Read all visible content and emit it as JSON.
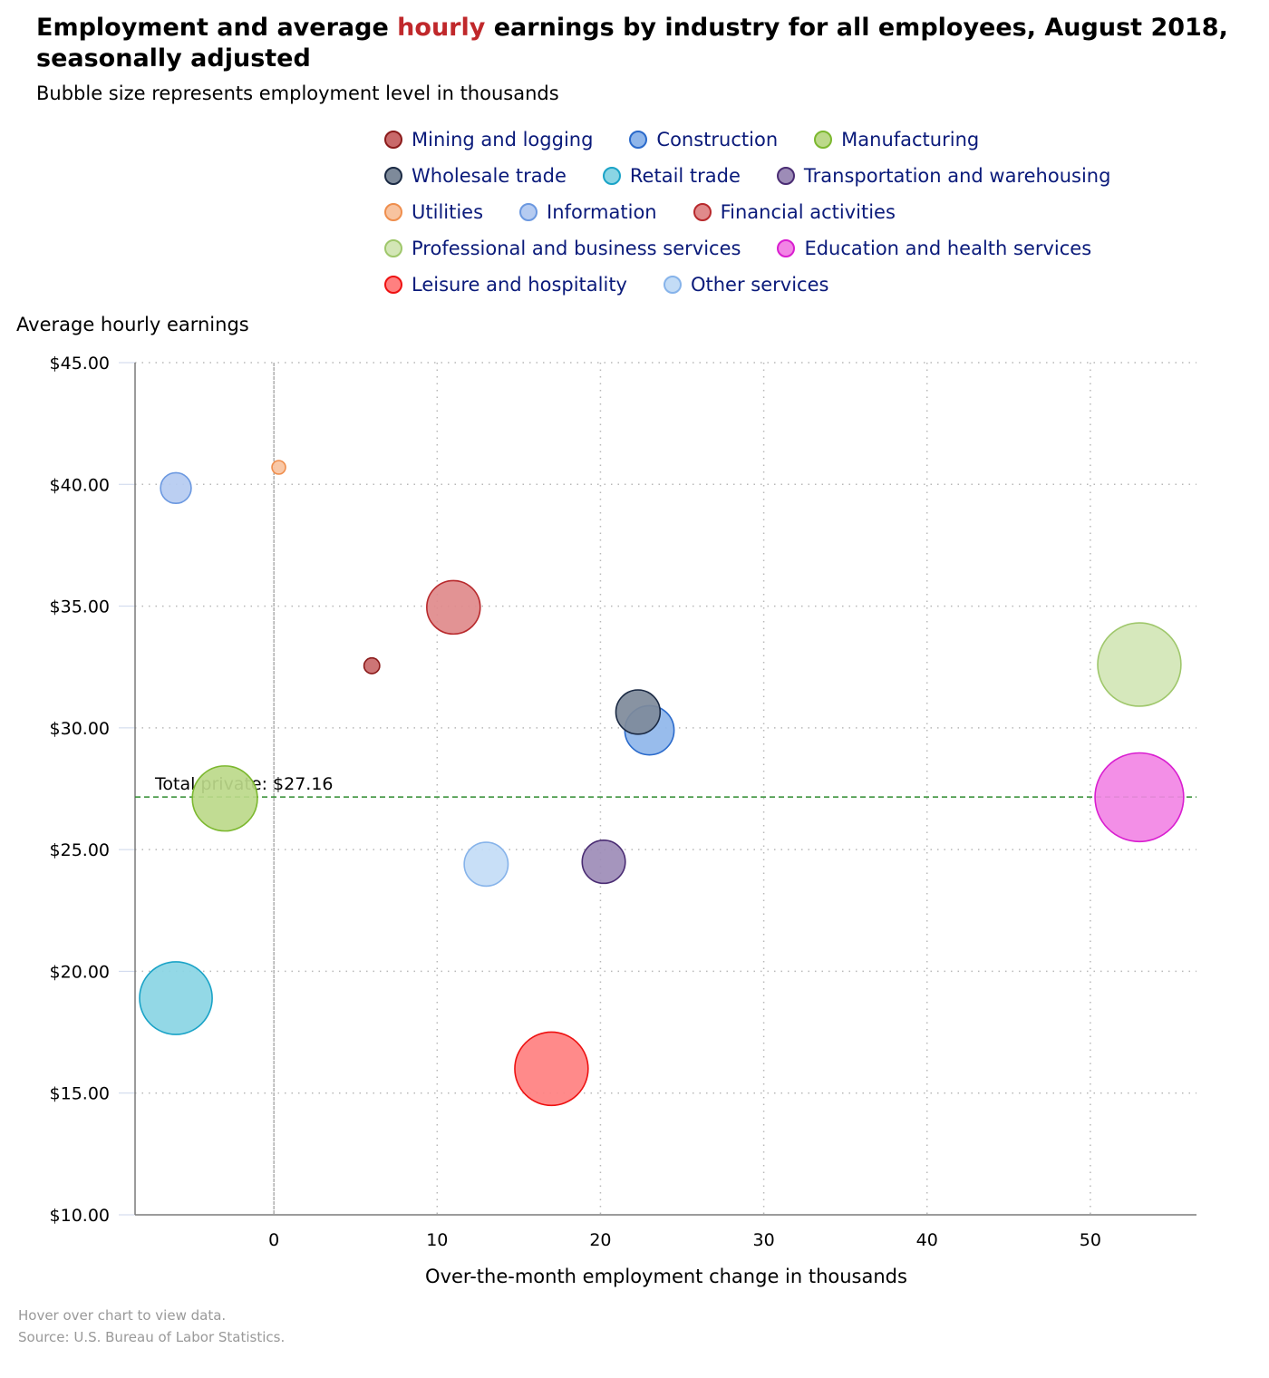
{
  "title_parts": [
    "Employment and average ",
    "hourly",
    " earnings by industry for all employees, August 2018, seasonally adjusted"
  ],
  "subtitle": "Bubble size represents employment level in thousands",
  "footer": {
    "line1": "Hover over chart to view data.",
    "line2": "Source: U.S. Bureau of Labor Statistics."
  },
  "chart_data": {
    "type": "scatter",
    "subtype": "bubble",
    "xlabel": "Over-the-month employment change in thousands",
    "ylabel": "Average hourly earnings",
    "xlim": [
      -8.5,
      56.5
    ],
    "ylim": [
      10,
      45
    ],
    "x_ticks": [
      0,
      10,
      20,
      30,
      40,
      50
    ],
    "y_ticks": [
      10,
      15,
      20,
      25,
      30,
      35,
      40,
      45
    ],
    "y_tick_labels": [
      "$10.00",
      "$15.00",
      "$20.00",
      "$25.00",
      "$30.00",
      "$35.00",
      "$40.00",
      "$45.00"
    ],
    "grid": true,
    "legend_position": "top-right",
    "reference_line": {
      "y": 27.16,
      "label": "Total private: $27.16",
      "color": "#2e8b2e"
    },
    "series": [
      {
        "name": "Mining and logging",
        "x": 6,
        "y": 32.55,
        "size": 740,
        "fill": "#c9696a",
        "stroke": "#8b1a1a"
      },
      {
        "name": "Construction",
        "x": 23,
        "y": 29.9,
        "size": 7300,
        "fill": "#8fb6ea",
        "stroke": "#2a6acb"
      },
      {
        "name": "Manufacturing",
        "x": -3,
        "y": 27.1,
        "size": 12750,
        "fill": "#bcd98a",
        "stroke": "#7cb82f"
      },
      {
        "name": "Wholesale trade",
        "x": 22.3,
        "y": 30.65,
        "size": 5900,
        "fill": "#7e8a9a",
        "stroke": "#1b2a44"
      },
      {
        "name": "Retail trade",
        "x": -6,
        "y": 18.9,
        "size": 15900,
        "fill": "#8ad5e4",
        "stroke": "#1aa3c7"
      },
      {
        "name": "Transportation and warehousing",
        "x": 20.2,
        "y": 24.5,
        "size": 5600,
        "fill": "#9d8cb7",
        "stroke": "#4a2c73"
      },
      {
        "name": "Utilities",
        "x": 0.3,
        "y": 40.7,
        "size": 555,
        "fill": "#f8c39f",
        "stroke": "#ef8e4d"
      },
      {
        "name": "Information",
        "x": -6,
        "y": 39.85,
        "size": 2830,
        "fill": "#b5cbf1",
        "stroke": "#6b98e0"
      },
      {
        "name": "Financial activities",
        "x": 11,
        "y": 34.95,
        "size": 8600,
        "fill": "#e08a8b",
        "stroke": "#b8292c"
      },
      {
        "name": "Professional and business services",
        "x": 53,
        "y": 32.6,
        "size": 20900,
        "fill": "#d3e6b6",
        "stroke": "#9fc76b"
      },
      {
        "name": "Education and health services",
        "x": 53,
        "y": 27.15,
        "size": 23700,
        "fill": "#f285e5",
        "stroke": "#d91ed0"
      },
      {
        "name": "Leisure and hospitality",
        "x": 17,
        "y": 16,
        "size": 16200,
        "fill": "#ff8080",
        "stroke": "#ee1111"
      },
      {
        "name": "Other services",
        "x": 13,
        "y": 24.4,
        "size": 5800,
        "fill": "#c3dcf6",
        "stroke": "#86b3ea"
      }
    ]
  }
}
